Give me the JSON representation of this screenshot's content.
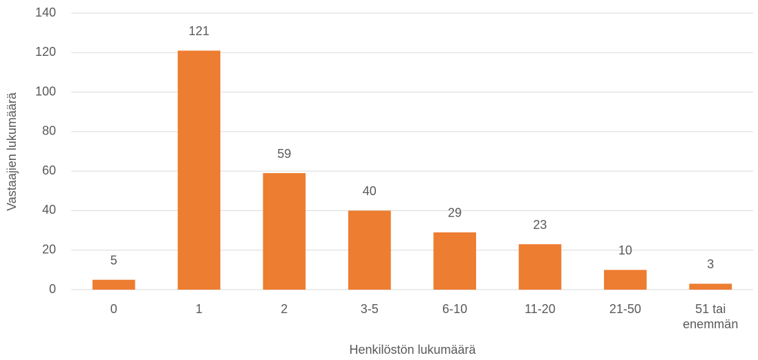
{
  "chart_data": {
    "type": "bar",
    "x_label": "Henkilöstön lukumäärä",
    "y_label": "Vastaajien lukumäärä",
    "categories": [
      "0",
      "1",
      "2",
      "3-5",
      "6-10",
      "11-20",
      "21-50",
      "51 tai enemmän"
    ],
    "values": [
      5,
      121,
      59,
      40,
      29,
      23,
      10,
      3
    ],
    "color": "#ed7d31",
    "ylim": [
      0,
      140
    ],
    "yticks": [
      0,
      20,
      40,
      60,
      80,
      100,
      120,
      140
    ],
    "grid": true
  }
}
